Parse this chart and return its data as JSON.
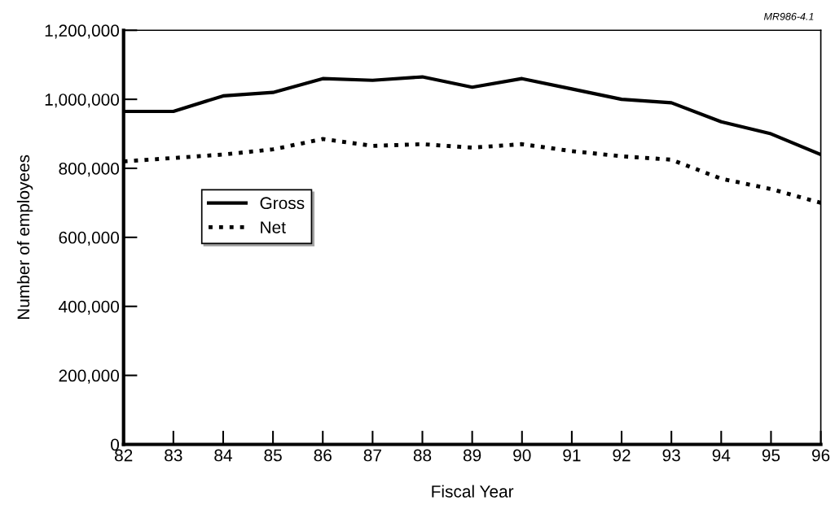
{
  "chart_data": {
    "type": "line",
    "xlabel": "Fiscal Year",
    "ylabel": "Number of employees",
    "categories": [
      "82",
      "83",
      "84",
      "85",
      "86",
      "87",
      "88",
      "89",
      "90",
      "91",
      "92",
      "93",
      "94",
      "95",
      "96"
    ],
    "series": [
      {
        "name": "Gross",
        "color": "#000000",
        "line_style": "solid",
        "values": [
          965000,
          965000,
          1010000,
          1020000,
          1060000,
          1055000,
          1065000,
          1035000,
          1060000,
          1030000,
          1000000,
          990000,
          935000,
          900000,
          840000
        ]
      },
      {
        "name": "Net",
        "color": "#000000",
        "line_style": "dotted",
        "values": [
          820000,
          830000,
          840000,
          855000,
          885000,
          865000,
          870000,
          860000,
          870000,
          850000,
          835000,
          825000,
          770000,
          740000,
          700000
        ]
      }
    ],
    "ylim": [
      0,
      1200000
    ],
    "yticks": [
      {
        "value": 0,
        "label": "0"
      },
      {
        "value": 200000,
        "label": "200,000"
      },
      {
        "value": 400000,
        "label": "400,000"
      },
      {
        "value": 600000,
        "label": "600,000"
      },
      {
        "value": 800000,
        "label": "800,000"
      },
      {
        "value": 1000000,
        "label": "1,000,000"
      },
      {
        "value": 1200000,
        "label": "1,200,000"
      }
    ],
    "grid": false,
    "legend": "left",
    "marker": "none",
    "annotations": [
      "MR986-4.1"
    ]
  }
}
